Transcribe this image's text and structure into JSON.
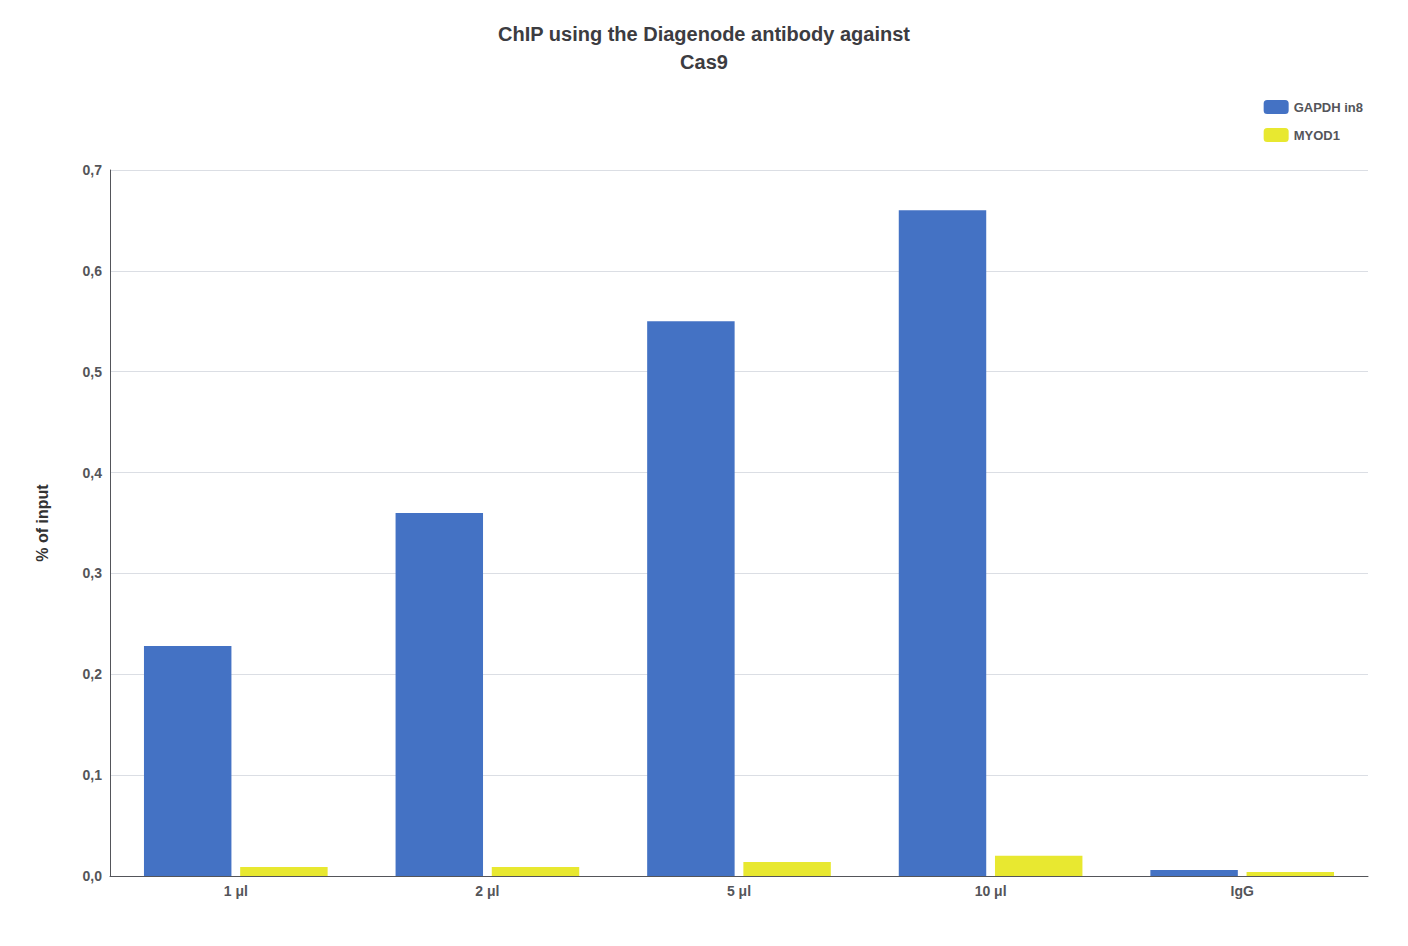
{
  "chart_data": {
    "type": "bar",
    "title": "ChIP using the Diagenode antibody against\nCas9",
    "ylabel": "% of input",
    "categories": [
      "1 μl",
      "2 μl",
      "5 μl",
      "10 μl",
      "IgG"
    ],
    "series": [
      {
        "name": "GAPDH in8",
        "color": "#4472c4",
        "values": [
          0.228,
          0.36,
          0.55,
          0.66,
          0.006
        ]
      },
      {
        "name": "MYOD1",
        "color": "#e8e830",
        "values": [
          0.009,
          0.009,
          0.014,
          0.02,
          0.004
        ]
      }
    ],
    "ylim": [
      0,
      0.7
    ],
    "yticks": [
      {
        "value": 0.0,
        "label": "0,0"
      },
      {
        "value": 0.1,
        "label": "0,1"
      },
      {
        "value": 0.2,
        "label": "0,2"
      },
      {
        "value": 0.3,
        "label": "0,3"
      },
      {
        "value": 0.4,
        "label": "0,4"
      },
      {
        "value": 0.5,
        "label": "0,5"
      },
      {
        "value": 0.6,
        "label": "0,6"
      },
      {
        "value": 0.7,
        "label": "0,7"
      }
    ],
    "grid": true,
    "legend": "upper right"
  }
}
